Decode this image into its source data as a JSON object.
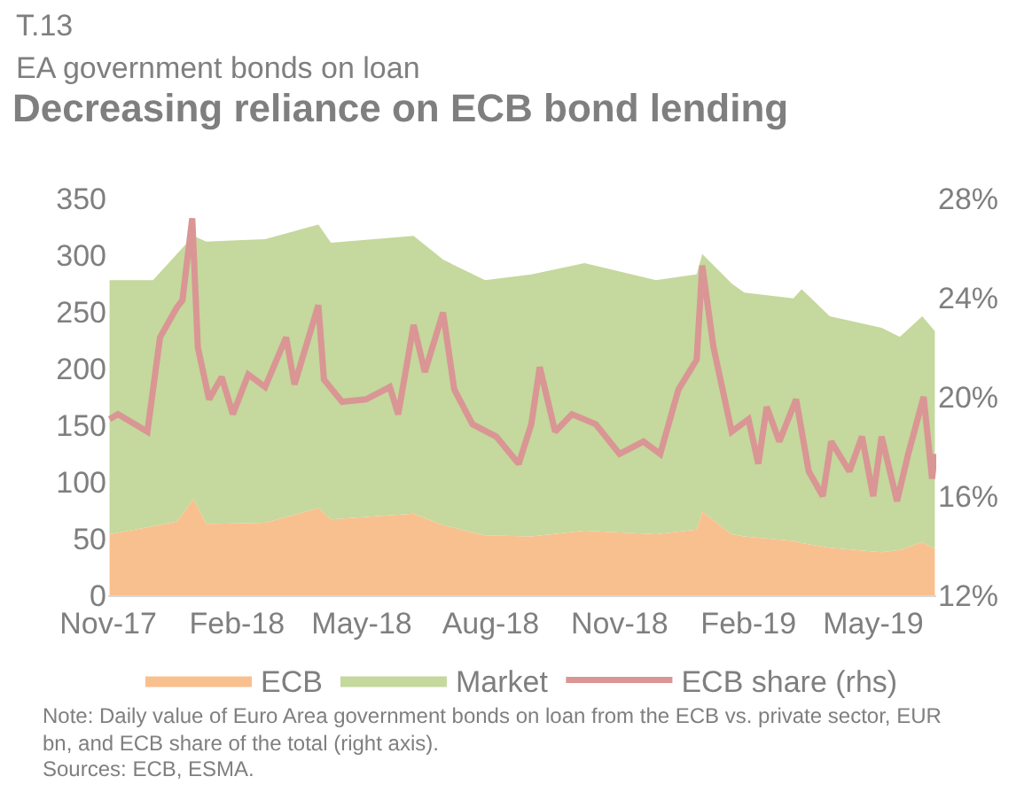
{
  "chart_data": {
    "type": "area",
    "stacked": true,
    "title": "Decreasing reliance on ECB bond lending",
    "subtitle": "EA government bonds on loan",
    "annotations": [
      "T.13",
      "Note: Daily value of Euro Area government bonds on loan from the ECB vs. private sector, EUR bn, and ECB share of the total (right axis).",
      "Sources: ECB, ESMA."
    ],
    "x": [
      "2017-11-02",
      "2017-12-03",
      "2017-12-20",
      "2018-01-01",
      "2018-01-10",
      "2018-02-21",
      "2018-03-31",
      "2018-04-09",
      "2018-06-07",
      "2018-06-28",
      "2018-07-28",
      "2018-08-30",
      "2018-10-07",
      "2018-11-27",
      "2018-12-26",
      "2018-12-30",
      "2019-01-20",
      "2019-01-29",
      "2019-03-05",
      "2019-03-11",
      "2019-03-31",
      "2019-05-07",
      "2019-05-20",
      "2019-06-05",
      "2019-06-14"
    ],
    "series": [
      {
        "name": "ECB",
        "color": "#f9c08f",
        "values": [
          54,
          61,
          65,
          85,
          63,
          64,
          77,
          67,
          72,
          62,
          53,
          52,
          57,
          54,
          58,
          74,
          54,
          52,
          48,
          46,
          42,
          38,
          40,
          47,
          41
        ]
      },
      {
        "name": "Market",
        "color": "#c5d89d",
        "values": [
          224,
          217,
          236,
          232,
          249,
          250,
          250,
          244,
          245,
          234,
          225,
          231,
          236,
          224,
          225,
          227,
          221,
          215,
          214,
          224,
          204,
          198,
          188,
          199,
          192
        ]
      },
      {
        "name": "ECB share (rhs)",
        "color": "#d99694",
        "type": "line",
        "axis": "y2",
        "x": [
          "2017-11-02",
          "2017-11-08",
          "2017-11-29",
          "2017-12-08",
          "2017-12-20",
          "2017-12-24",
          "2017-12-31",
          "2018-01-04",
          "2018-01-12",
          "2018-01-21",
          "2018-01-29",
          "2018-02-09",
          "2018-02-21",
          "2018-03-08",
          "2018-03-14",
          "2018-03-31",
          "2018-04-04",
          "2018-04-17",
          "2018-05-04",
          "2018-05-21",
          "2018-05-27",
          "2018-06-07",
          "2018-06-15",
          "2018-06-28",
          "2018-07-06",
          "2018-07-19",
          "2018-08-05",
          "2018-08-21",
          "2018-08-30",
          "2018-09-05",
          "2018-09-16",
          "2018-09-28",
          "2018-10-15",
          "2018-11-01",
          "2018-11-18",
          "2018-11-30",
          "2018-12-13",
          "2018-12-26",
          "2018-12-30",
          "2019-01-07",
          "2019-01-20",
          "2019-02-01",
          "2019-02-08",
          "2019-02-14",
          "2019-02-23",
          "2019-03-07",
          "2019-03-16",
          "2019-03-26",
          "2019-04-01",
          "2019-04-14",
          "2019-04-23",
          "2019-05-01",
          "2019-05-07",
          "2019-05-18",
          "2019-05-26",
          "2019-06-06",
          "2019-06-12",
          "2019-06-14"
        ],
        "values": [
          19.1,
          19.3,
          18.6,
          22.4,
          23.6,
          23.9,
          27.2,
          22,
          19.9,
          20.8,
          19.3,
          20.9,
          20.4,
          22.4,
          20.5,
          23.7,
          20.7,
          19.8,
          19.9,
          20.4,
          19.3,
          22.9,
          21,
          23.4,
          20.3,
          18.9,
          18.4,
          17.3,
          18.9,
          21.2,
          18.6,
          19.3,
          18.9,
          17.7,
          18.2,
          17.7,
          20.3,
          21.5,
          25.3,
          22,
          18.6,
          19.1,
          17.3,
          19.6,
          18.2,
          19.9,
          17,
          16,
          18.2,
          17,
          18.4,
          16,
          18.4,
          15.8,
          17.7,
          20,
          16.7,
          17.7
        ]
      }
    ],
    "xlim": [
      "2017-11-01",
      "2019-06-15"
    ],
    "xticks": [
      {
        "value": "2017-11-01",
        "label": "Nov-17"
      },
      {
        "value": "2018-02-01",
        "label": "Feb-18"
      },
      {
        "value": "2018-05-01",
        "label": "May-18"
      },
      {
        "value": "2018-08-01",
        "label": "Aug-18"
      },
      {
        "value": "2018-11-01",
        "label": "Nov-18"
      },
      {
        "value": "2019-02-01",
        "label": "Feb-19"
      },
      {
        "value": "2019-05-01",
        "label": "May-19"
      }
    ],
    "ylim": [
      0,
      350
    ],
    "yticks": [
      0,
      50,
      100,
      150,
      200,
      250,
      300,
      350
    ],
    "y2lim": [
      12,
      28
    ],
    "y2ticks": [
      {
        "value": 12,
        "label": "12%"
      },
      {
        "value": 16,
        "label": "16%"
      },
      {
        "value": 20,
        "label": "20%"
      },
      {
        "value": 24,
        "label": "24%"
      },
      {
        "value": 28,
        "label": "28%"
      }
    ],
    "legend": "bottom"
  }
}
